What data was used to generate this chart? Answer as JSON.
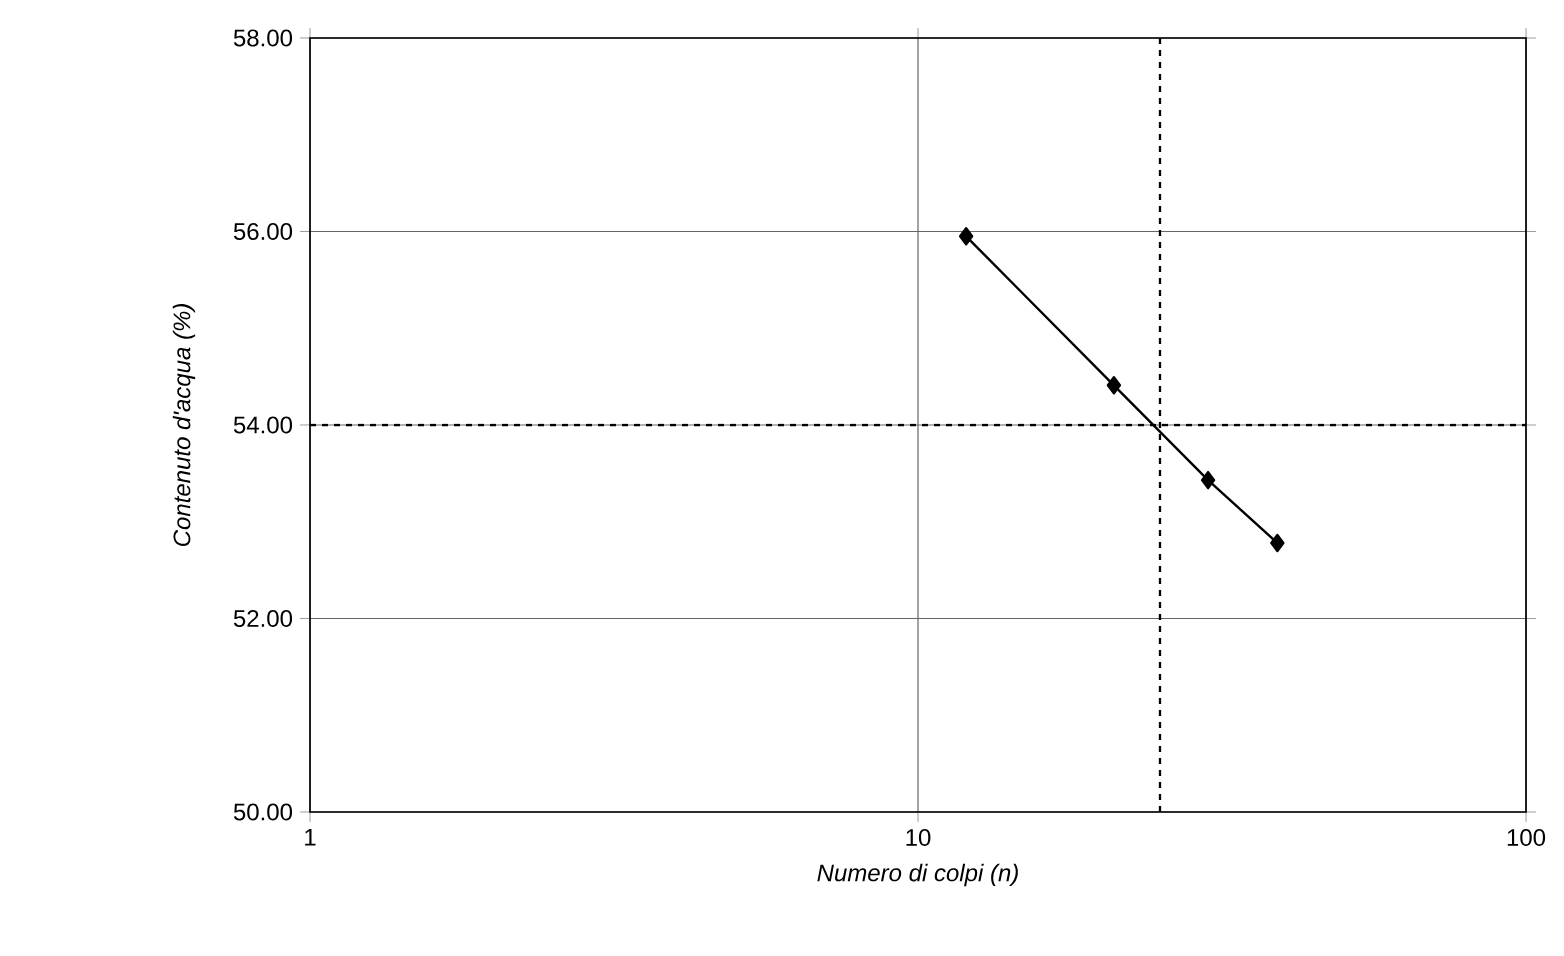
{
  "chart_data": {
    "type": "line",
    "xlabel": "Numero di colpi (n)",
    "ylabel": "Contenuto d'acqua (%)",
    "log": "x",
    "grid": true,
    "marker": "diamond",
    "line_style": "solid",
    "xlim": [
      1,
      100
    ],
    "xticks": [
      1,
      10,
      100
    ],
    "ylim": [
      50,
      58
    ],
    "yticks": [
      {
        "value": 50,
        "label": "50.00"
      },
      {
        "value": 52,
        "label": "52.00"
      },
      {
        "value": 54,
        "label": "54.00"
      },
      {
        "value": 56,
        "label": "56.00"
      },
      {
        "value": 58,
        "label": "58.00"
      }
    ],
    "series": [
      {
        "color": "#000000",
        "x": [
          12,
          21,
          30,
          39
        ],
        "values": [
          55.95,
          54.41,
          53.43,
          52.78
        ]
      }
    ],
    "ref_lines": [
      {
        "axis": "x",
        "value": 25,
        "line_style": "dashed",
        "color": "#000000"
      },
      {
        "axis": "y",
        "value": 54,
        "line_style": "dashed",
        "color": "#000000"
      }
    ]
  }
}
